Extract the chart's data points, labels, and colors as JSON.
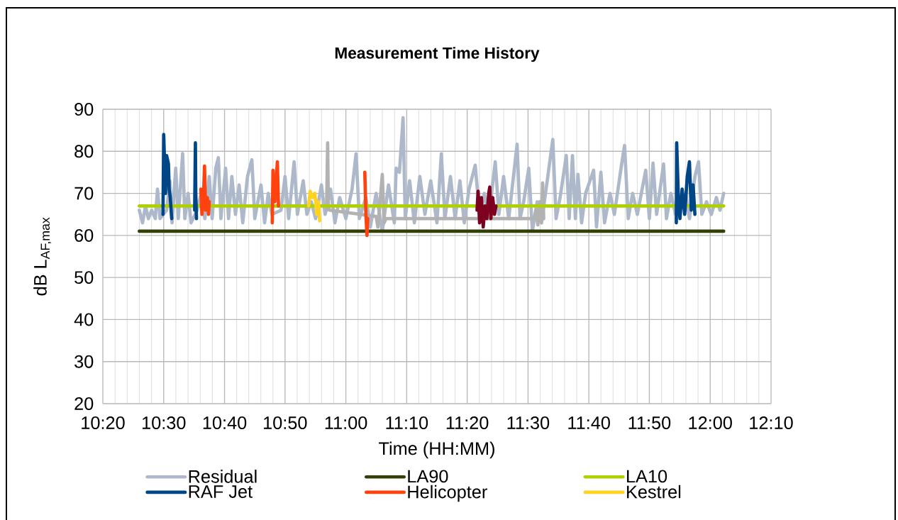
{
  "chart_data": {
    "type": "line",
    "title": "Measurement Time History",
    "xlabel": "Time (HH:MM)",
    "ylabel": "dB L$_{AF,max}$",
    "xlim": [
      10.333,
      12.167
    ],
    "ylim": [
      20,
      90
    ],
    "xticks": [
      {
        "value": 10.333,
        "label": "10:20"
      },
      {
        "value": 10.5,
        "label": "10:30"
      },
      {
        "value": 10.667,
        "label": "10:40"
      },
      {
        "value": 10.833,
        "label": "10:50"
      },
      {
        "value": 11,
        "label": "11:00"
      },
      {
        "value": 11.167,
        "label": "11:10"
      },
      {
        "value": 11.333,
        "label": "11:20"
      },
      {
        "value": 11.5,
        "label": "11:30"
      },
      {
        "value": 11.667,
        "label": "11:40"
      },
      {
        "value": 11.833,
        "label": "11:50"
      },
      {
        "value": 12,
        "label": "12:00"
      },
      {
        "value": 12.167,
        "label": "12:10"
      }
    ],
    "yticks": [
      20,
      30,
      40,
      50,
      60,
      70,
      80,
      90
    ],
    "grid": true,
    "legend": "bottom",
    "line_style": "solid",
    "series": [
      {
        "name": "Residual",
        "color": "#adb9ca",
        "x": [
          10.433,
          10.442,
          10.45,
          10.458,
          10.467,
          10.477,
          10.483,
          10.49,
          10.508,
          10.517,
          10.523,
          10.533,
          10.54,
          10.552,
          10.558,
          10.567,
          10.575,
          10.592,
          10.603,
          10.613,
          10.625,
          10.633,
          10.643,
          10.65,
          10.657,
          10.67,
          10.678,
          10.687,
          10.697,
          10.707,
          10.717,
          10.73,
          10.742,
          10.75,
          10.767,
          10.777,
          10.787,
          10.797,
          10.822,
          10.833,
          10.843,
          10.858,
          10.867,
          10.883,
          10.893,
          10.905,
          10.917,
          10.933,
          10.943,
          10.958,
          10.97,
          10.983,
          11.0,
          11.017,
          11.028,
          11.037,
          11.055,
          11.067,
          11.083,
          11.1,
          11.117,
          11.133,
          11.138,
          11.147,
          11.157,
          11.163,
          11.175,
          11.188,
          11.203,
          11.217,
          11.233,
          11.25,
          11.262,
          11.272,
          11.287,
          11.3,
          11.313,
          11.325,
          11.338,
          11.355,
          11.367,
          11.38,
          11.392,
          11.41,
          11.42,
          11.433,
          11.447,
          11.47,
          11.478,
          11.488,
          11.502,
          11.512,
          11.525,
          11.537,
          11.568,
          11.577,
          11.588,
          11.605,
          11.613,
          11.622,
          11.63,
          11.637,
          11.647,
          11.658,
          11.68,
          11.688,
          11.7,
          11.71,
          11.725,
          11.737,
          11.757,
          11.765,
          11.775,
          11.787,
          11.8,
          11.823,
          11.833,
          11.843,
          11.853,
          11.872,
          11.88,
          11.892,
          11.905,
          11.933,
          11.943,
          11.958,
          11.968,
          11.977,
          11.99,
          12.003,
          12.017,
          12.027,
          12.037
        ],
        "values": [
          66,
          63,
          67,
          64,
          66,
          64,
          71,
          64,
          66,
          73,
          63,
          76,
          64,
          79.5,
          64,
          70,
          63,
          66,
          70,
          64,
          74,
          64,
          76,
          78.5,
          64,
          76,
          64,
          74,
          65,
          72,
          63,
          74,
          78,
          64,
          72,
          63,
          70,
          65,
          66,
          74,
          64,
          77.5,
          65,
          73,
          65,
          68,
          64,
          72,
          65,
          71,
          63,
          69,
          64,
          71,
          79.4,
          64,
          69,
          62,
          70,
          61,
          72,
          63,
          76,
          75,
          88,
          64,
          73,
          63,
          74,
          65,
          73,
          63,
          79.4,
          64,
          74,
          64,
          73,
          63,
          71,
          76.7,
          65,
          70,
          64,
          77.5,
          65,
          74,
          64,
          81.7,
          64,
          68,
          76,
          61,
          68,
          63,
          82.8,
          64,
          69,
          79,
          64,
          79,
          64,
          74.5,
          63,
          70,
          75.5,
          62,
          75,
          63,
          70,
          65,
          77,
          81.4,
          64,
          70,
          65,
          75.5,
          64,
          77.2,
          65,
          77,
          64,
          70,
          65,
          70,
          64,
          74,
          77.5,
          65,
          68,
          65,
          69,
          66,
          70
        ]
      },
      {
        "color": "#b2b2b2",
        "x": [
          10.947,
          10.95,
          10.952,
          10.955,
          11.083,
          11.088,
          11.093,
          11.1,
          11.105,
          11.11,
          11.517,
          11.522,
          11.527,
          11.532,
          11.537,
          11.54,
          11.543
        ],
        "values": [
          66,
          82,
          67,
          66,
          64.5,
          62,
          67,
          74.5,
          63,
          64,
          64,
          66,
          62.5,
          68,
          63,
          72.5,
          64
        ]
      },
      {
        "name": "LA90",
        "color": "#314004",
        "x": [
          10.433,
          12.037
        ],
        "values": [
          61,
          61
        ]
      },
      {
        "name": "LA10",
        "color": "#aecf00",
        "x": [
          10.433,
          12.037
        ],
        "values": [
          67,
          67
        ]
      },
      {
        "name": "RAF Jet",
        "color": "#004586",
        "x": [
          10.498,
          10.5,
          10.505,
          10.508,
          10.513,
          10.515,
          10.518,
          10.522
        ],
        "values": [
          65,
          84,
          70,
          79,
          77,
          71,
          69,
          64
        ]
      },
      {
        "color": "#004586",
        "x": [
          10.585,
          10.587,
          10.588,
          10.59
        ],
        "values": [
          66,
          82,
          70,
          64
        ]
      },
      {
        "color": "#004586",
        "x": [
          11.907,
          11.908,
          11.913,
          11.917,
          11.923,
          11.93,
          11.937,
          11.943,
          11.948,
          11.953,
          11.958
        ],
        "values": [
          63,
          82,
          68,
          64,
          71,
          65,
          74,
          77.5,
          66,
          72,
          65
        ]
      },
      {
        "name": "Helicopter",
        "color": "#ff420e",
        "x": [
          10.602,
          10.605,
          10.61,
          10.612,
          10.615,
          10.62,
          10.623,
          10.625
        ],
        "values": [
          71,
          65,
          71,
          76.5,
          66,
          69,
          65,
          68
        ]
      },
      {
        "color": "#ff420e",
        "x": [
          10.798,
          10.8,
          10.805,
          10.812,
          10.815
        ],
        "values": [
          63,
          75.5,
          68,
          77.5,
          67
        ]
      },
      {
        "color": "#ff420e",
        "x": [
          11.052,
          11.055,
          11.058,
          11.06
        ],
        "values": [
          75,
          65,
          60,
          64
        ]
      },
      {
        "name": "Kestrel",
        "color": "#ffd320",
        "x": [
          10.898,
          10.902,
          10.908,
          10.915,
          10.92,
          10.925,
          10.928
        ],
        "values": [
          67,
          70.5,
          69,
          70,
          65,
          68,
          63.5
        ]
      },
      {
        "color": "#7e0021",
        "x": [
          11.36,
          11.363,
          11.367,
          11.372,
          11.377,
          11.382,
          11.387,
          11.392,
          11.395,
          11.398,
          11.403,
          11.408,
          11.412
        ],
        "values": [
          66,
          70.5,
          63,
          69,
          62,
          67,
          64,
          70,
          71.5,
          64,
          69,
          65,
          67
        ]
      }
    ]
  }
}
